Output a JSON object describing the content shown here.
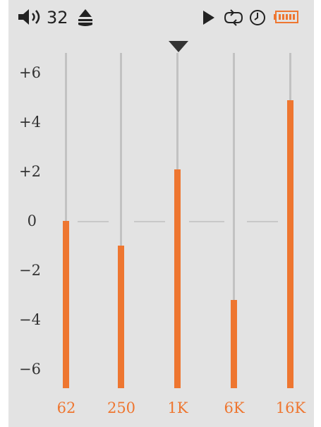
{
  "status_bar": {
    "volume_icon": "speaker-icon",
    "volume_value": "32",
    "eq_mode_icon": "eject-style-icon",
    "play_icon": "play-icon",
    "repeat_icon": "repeat-icon",
    "clock_icon": "clock-icon",
    "battery_icon": "battery-icon",
    "battery_color": "#ee7630"
  },
  "equalizer": {
    "y_labels": [
      "+6",
      "+4",
      "+2",
      "0",
      "−2",
      "−4",
      "−6"
    ],
    "selected_band_index": 2,
    "bands": [
      {
        "label": "62",
        "value": 0.0
      },
      {
        "label": "250",
        "value": -1.0
      },
      {
        "label": "1K",
        "value": 2.1
      },
      {
        "label": "6K",
        "value": -3.2
      },
      {
        "label": "16K",
        "value": 4.9
      }
    ],
    "accent_color": "#ee7630",
    "track_color": "#c2c2c2"
  }
}
